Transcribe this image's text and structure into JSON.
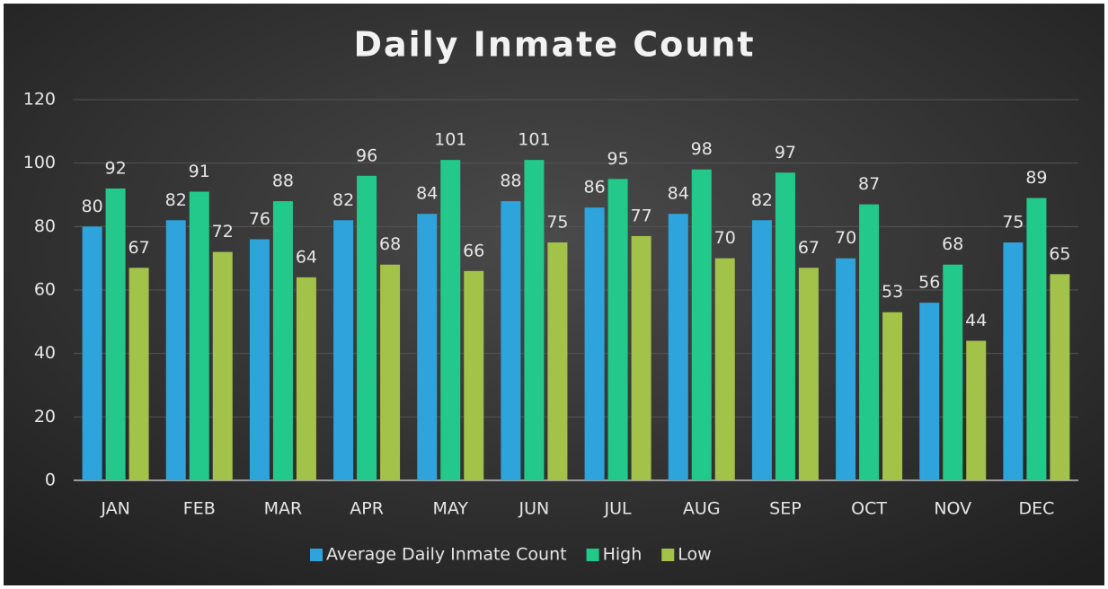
{
  "chart_data": {
    "type": "bar",
    "title": "Daily Inmate Count",
    "categories": [
      "JAN",
      "FEB",
      "MAR",
      "APR",
      "MAY",
      "JUN",
      "JUL",
      "AUG",
      "SEP",
      "OCT",
      "NOV",
      "DEC"
    ],
    "series": [
      {
        "name": "Average Daily Inmate Count",
        "color": "#2ea3dc",
        "values": [
          80,
          82,
          76,
          82,
          84,
          88,
          86,
          84,
          82,
          70,
          56,
          75
        ]
      },
      {
        "name": "High",
        "color": "#22c98a",
        "values": [
          92,
          91,
          88,
          96,
          101,
          101,
          95,
          98,
          97,
          87,
          68,
          89
        ]
      },
      {
        "name": "Low",
        "color": "#a3c24a",
        "values": [
          67,
          72,
          64,
          68,
          66,
          75,
          77,
          70,
          67,
          53,
          44,
          65
        ]
      }
    ],
    "ylim": [
      0,
      120
    ],
    "yticks": [
      0,
      20,
      40,
      60,
      80,
      100,
      120
    ],
    "grid": true,
    "legend": "bottom"
  }
}
